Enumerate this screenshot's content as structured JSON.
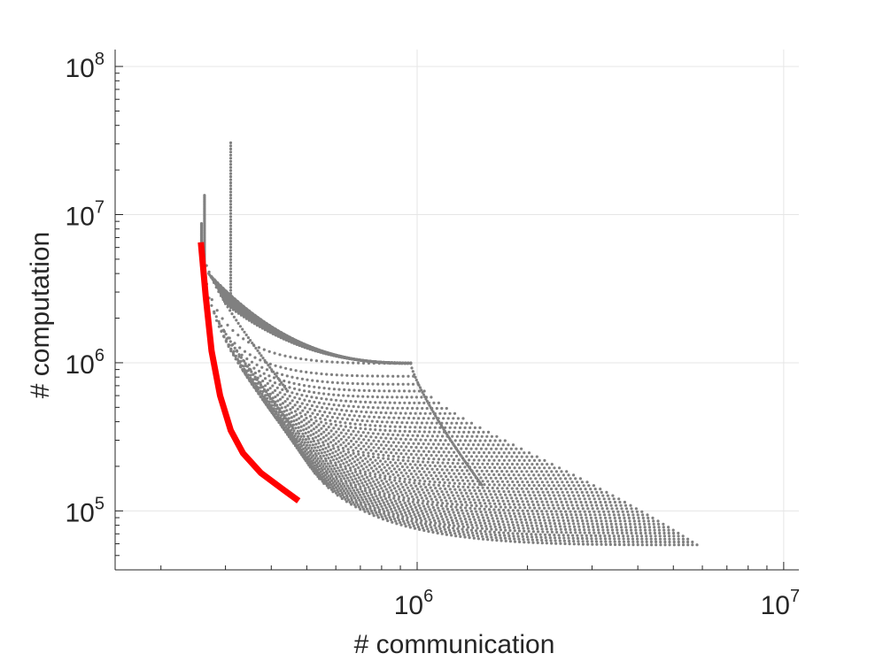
{
  "chart_data": {
    "type": "scatter",
    "title": "",
    "xlabel": "# communication",
    "ylabel": "# computation",
    "xscale": "log",
    "yscale": "log",
    "xlim": [
      150000,
      11000000
    ],
    "ylim": [
      40000,
      130000000
    ],
    "grid": true,
    "xticks": [
      {
        "value": 1000000,
        "base": "10",
        "exp": "6"
      },
      {
        "value": 10000000,
        "base": "10",
        "exp": "7"
      }
    ],
    "yticks": [
      {
        "value": 100000,
        "base": "10",
        "exp": "5"
      },
      {
        "value": 1000000,
        "base": "10",
        "exp": "6"
      },
      {
        "value": 10000000,
        "base": "10",
        "exp": "7"
      },
      {
        "value": 100000000,
        "base": "10",
        "exp": "8"
      }
    ],
    "colors": {
      "cloud": "#808080",
      "frontier": "#ff0000",
      "axis": "#262626",
      "grid": "#e6e6e6"
    },
    "series": [
      {
        "kind": "dot-cloud",
        "color": "#808080",
        "note_points": [
          [
            260000,
            8700000
          ],
          [
            263000,
            13500000
          ],
          [
            310000,
            30500000
          ],
          [
            960000,
            990000
          ],
          [
            5800000,
            59000
          ],
          [
            3500000,
            69000
          ],
          [
            2600000,
            76000
          ],
          [
            2150000,
            83000
          ],
          [
            1900000,
            90000
          ],
          [
            1750000,
            97000
          ],
          [
            1600000,
            103000
          ]
        ]
      },
      {
        "kind": "frontier-line",
        "color": "#ff0000",
        "points": [
          [
            257000,
            6500000
          ],
          [
            265000,
            2800000
          ],
          [
            275000,
            1200000
          ],
          [
            290000,
            600000
          ],
          [
            310000,
            350000
          ],
          [
            335000,
            245000
          ],
          [
            375000,
            180000
          ],
          [
            430000,
            140000
          ],
          [
            475000,
            117000
          ]
        ]
      }
    ]
  }
}
